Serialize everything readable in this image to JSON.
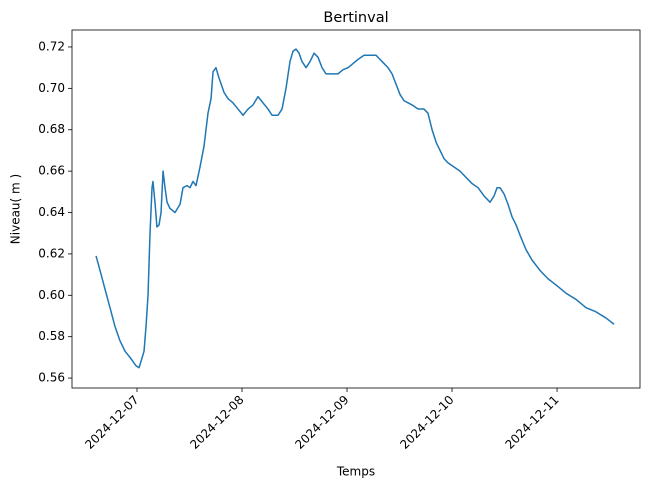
{
  "chart_data": {
    "type": "line",
    "title": "Bertinval",
    "x_label": "Temps",
    "y_label": "Niveau( m )",
    "series": [
      {
        "color": "#1f77b4",
        "x": [
          20063.61,
          20063.648,
          20063.695,
          20063.743,
          20063.79,
          20063.838,
          20063.886,
          20063.933,
          20063.962,
          20063.99,
          20064.019,
          20064.038,
          20064.067,
          20064.086,
          20064.105,
          20064.124,
          20064.143,
          20064.152,
          20064.171,
          20064.19,
          20064.21,
          20064.229,
          20064.248,
          20064.267,
          20064.286,
          20064.314,
          20064.362,
          20064.41,
          20064.438,
          20064.476,
          20064.505,
          20064.533,
          20064.562,
          20064.6,
          20064.638,
          20064.676,
          20064.705,
          20064.724,
          20064.752,
          20064.781,
          20064.829,
          20064.867,
          20064.914,
          20064.962,
          20065.01,
          20065.057,
          20065.105,
          20065.152,
          20065.2,
          20065.248,
          20065.286,
          20065.343,
          20065.381,
          20065.419,
          20065.457,
          20065.486,
          20065.514,
          20065.543,
          20065.571,
          20065.61,
          20065.648,
          20065.686,
          20065.724,
          20065.762,
          20065.8,
          20065.857,
          20065.914,
          20065.962,
          20066.01,
          20066.057,
          20066.105,
          20066.162,
          20066.219,
          20066.276,
          20066.333,
          20066.39,
          20066.429,
          20066.467,
          20066.505,
          20066.543,
          20066.581,
          20066.619,
          20066.676,
          20066.733,
          20066.771,
          20066.81,
          20066.848,
          20066.886,
          20066.924,
          20066.962,
          20067.019,
          20067.076,
          20067.133,
          20067.19,
          20067.248,
          20067.305,
          20067.362,
          20067.4,
          20067.429,
          20067.457,
          20067.495,
          20067.533,
          20067.571,
          20067.61,
          20067.648,
          20067.705,
          20067.762,
          20067.838,
          20067.914,
          20067.99,
          20068.086,
          20068.181,
          20068.276,
          20068.371,
          20068.467,
          20068.543
        ],
        "values": [
          0.619,
          0.612,
          0.603,
          0.594,
          0.585,
          0.578,
          0.573,
          0.57,
          0.568,
          0.566,
          0.565,
          0.568,
          0.573,
          0.585,
          0.6,
          0.63,
          0.652,
          0.655,
          0.645,
          0.633,
          0.634,
          0.64,
          0.66,
          0.652,
          0.645,
          0.642,
          0.64,
          0.644,
          0.652,
          0.653,
          0.652,
          0.655,
          0.653,
          0.662,
          0.672,
          0.688,
          0.695,
          0.708,
          0.71,
          0.705,
          0.698,
          0.695,
          0.693,
          0.69,
          0.687,
          0.69,
          0.692,
          0.696,
          0.693,
          0.69,
          0.687,
          0.687,
          0.69,
          0.7,
          0.713,
          0.718,
          0.719,
          0.717,
          0.713,
          0.71,
          0.713,
          0.717,
          0.715,
          0.71,
          0.707,
          0.707,
          0.707,
          0.709,
          0.71,
          0.712,
          0.714,
          0.716,
          0.716,
          0.716,
          0.713,
          0.71,
          0.707,
          0.702,
          0.697,
          0.694,
          0.693,
          0.692,
          0.69,
          0.69,
          0.688,
          0.68,
          0.674,
          0.67,
          0.666,
          0.664,
          0.662,
          0.66,
          0.657,
          0.654,
          0.652,
          0.648,
          0.645,
          0.648,
          0.652,
          0.652,
          0.649,
          0.644,
          0.638,
          0.634,
          0.629,
          0.622,
          0.617,
          0.612,
          0.608,
          0.605,
          0.601,
          0.598,
          0.594,
          0.592,
          0.589,
          0.586
        ]
      }
    ],
    "xlim": [
      20063.381,
      20068.79
    ],
    "xticks": [
      {
        "value": 20064,
        "label": "2024-12-07"
      },
      {
        "value": 20065,
        "label": "2024-12-08"
      },
      {
        "value": 20066,
        "label": "2024-12-09"
      },
      {
        "value": 20067,
        "label": "2024-12-10"
      },
      {
        "value": 20068,
        "label": "2024-12-11"
      }
    ],
    "ylim": [
      0.5552,
      0.7282
    ],
    "yticks": [
      0.56,
      0.58,
      {
        "value": 0.6,
        "label": "0.60"
      },
      0.62,
      0.64,
      0.66,
      0.68,
      {
        "value": 0.7,
        "label": "0.70"
      },
      0.72
    ],
    "grid": false
  }
}
